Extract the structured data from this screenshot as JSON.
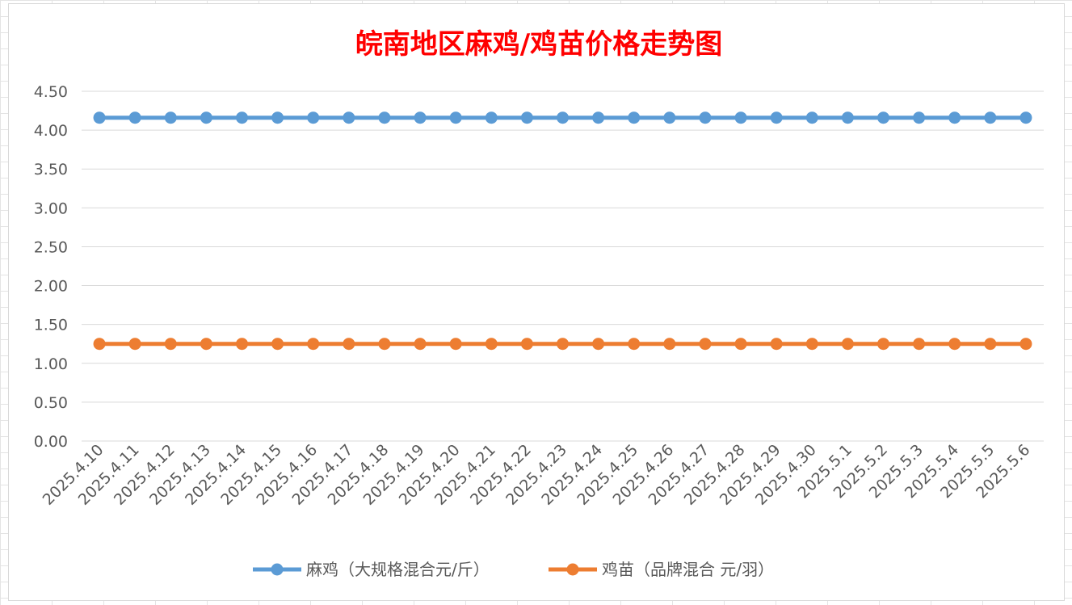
{
  "chart_data": {
    "type": "line",
    "title": "皖南地区麻鸡/鸡苗价格走势图",
    "title_color": "#ff0000",
    "categories": [
      "2025.4.10",
      "2025.4.11",
      "2025.4.12",
      "2025.4.13",
      "2025.4.14",
      "2025.4.15",
      "2025.4.16",
      "2025.4.17",
      "2025.4.18",
      "2025.4.19",
      "2025.4.20",
      "2025.4.21",
      "2025.4.22",
      "2025.4.23",
      "2025.4.24",
      "2025.4.25",
      "2025.4.26",
      "2025.4.27",
      "2025.4.28",
      "2025.4.29",
      "2025.4.30",
      "2025.5.1",
      "2025.5.2",
      "2025.5.3",
      "2025.5.4",
      "2025.5.5",
      "2025.5.6"
    ],
    "y_ticks": [
      "0.00",
      "0.50",
      "1.00",
      "1.50",
      "2.00",
      "2.50",
      "3.00",
      "3.50",
      "4.00",
      "4.50"
    ],
    "ylim": [
      0,
      4.5
    ],
    "grid": true,
    "legend_position": "bottom",
    "series": [
      {
        "name": "麻鸡（大规格混合元/斤）",
        "color": "#5b9bd5",
        "values": [
          4.16,
          4.16,
          4.16,
          4.16,
          4.16,
          4.16,
          4.16,
          4.16,
          4.16,
          4.16,
          4.16,
          4.16,
          4.16,
          4.16,
          4.16,
          4.16,
          4.16,
          4.16,
          4.16,
          4.16,
          4.16,
          4.16,
          4.16,
          4.16,
          4.16,
          4.16,
          4.16
        ]
      },
      {
        "name": "鸡苗（品牌混合 元/羽）",
        "color": "#ed7d31",
        "values": [
          1.25,
          1.25,
          1.25,
          1.25,
          1.25,
          1.25,
          1.25,
          1.25,
          1.25,
          1.25,
          1.25,
          1.25,
          1.25,
          1.25,
          1.25,
          1.25,
          1.25,
          1.25,
          1.25,
          1.25,
          1.25,
          1.25,
          1.25,
          1.25,
          1.25,
          1.25,
          1.25
        ]
      }
    ]
  }
}
